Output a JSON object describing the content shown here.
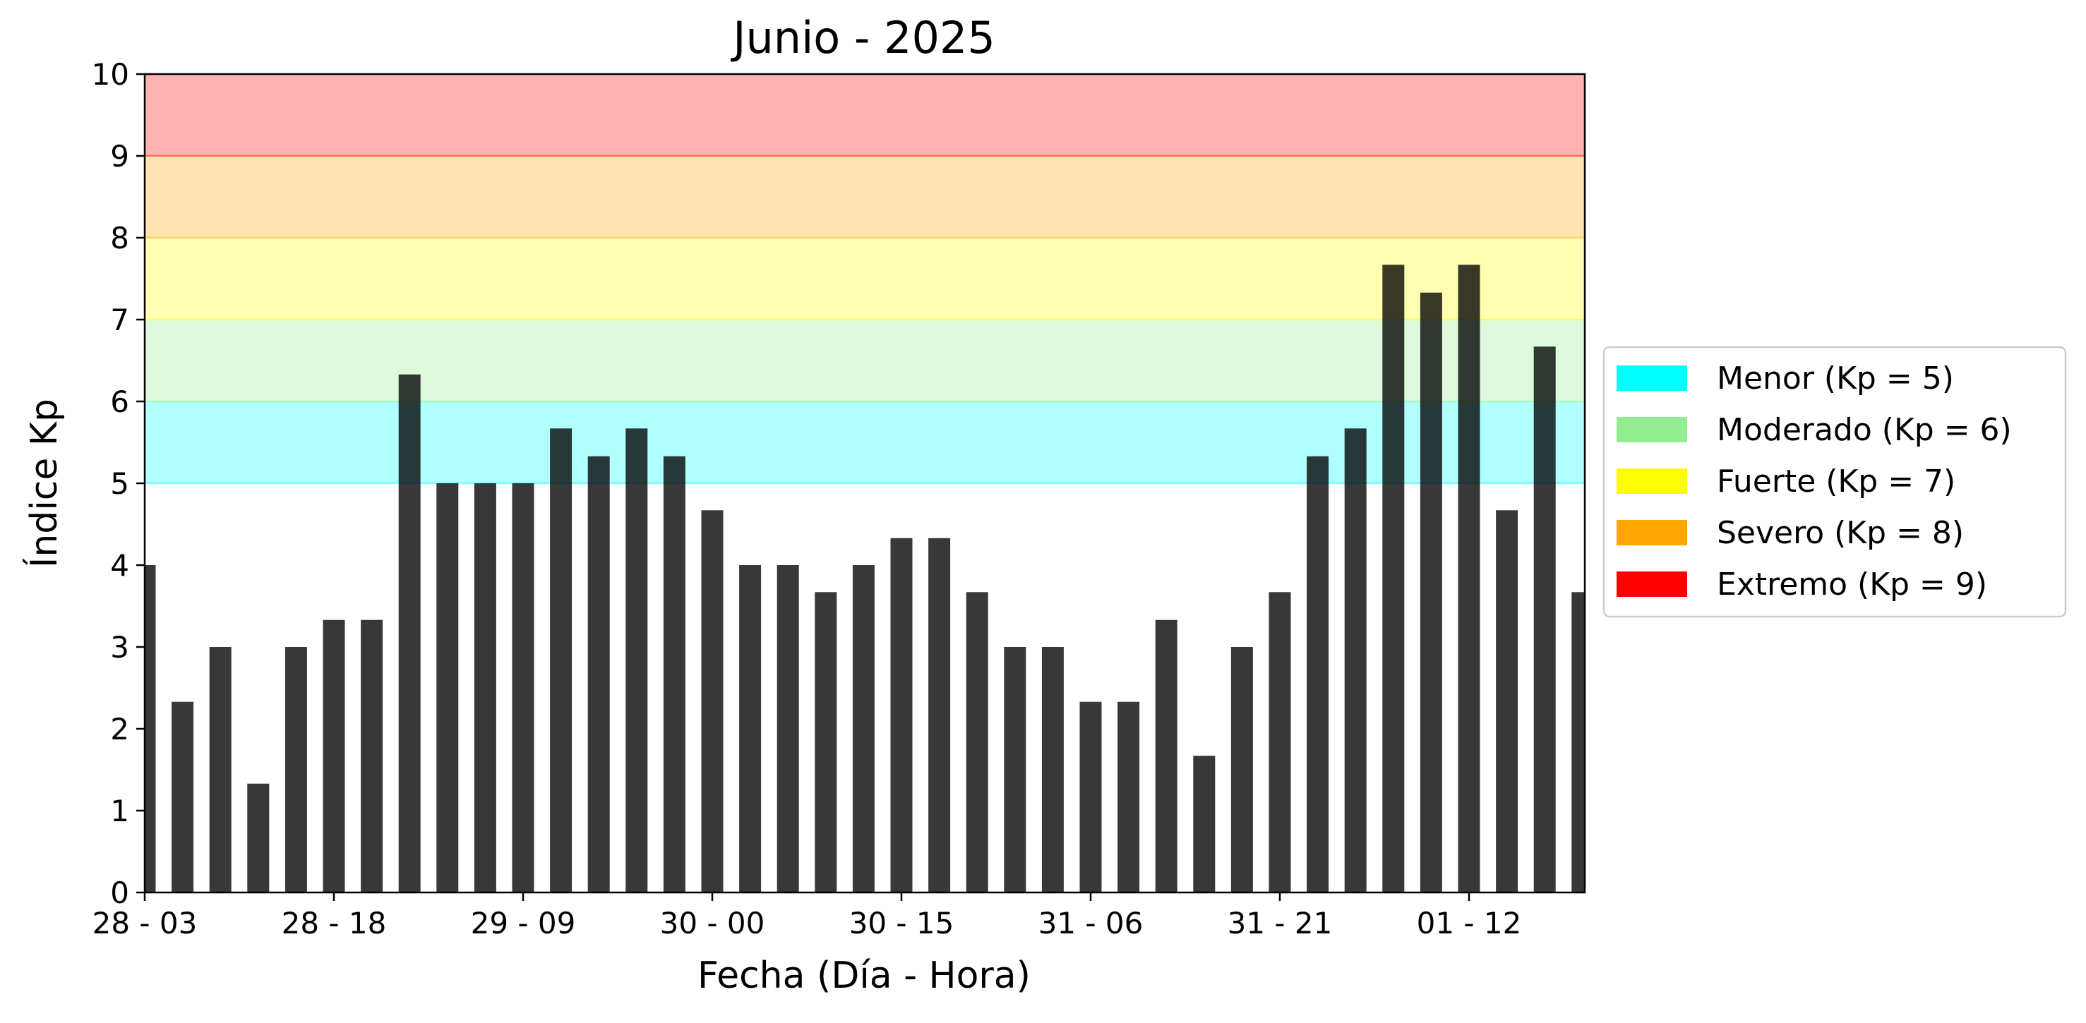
{
  "chart_data": {
    "type": "bar",
    "title": "Junio - 2025",
    "xlabel": "Fecha (Día - Hora)",
    "ylabel": "Índice Kp",
    "ylim": [
      0,
      10
    ],
    "yticks": [
      0,
      1,
      2,
      3,
      4,
      5,
      6,
      7,
      8,
      9,
      10
    ],
    "bar_color": "#000000",
    "xticks": [
      "28 - 03",
      "28 - 18",
      "29 - 09",
      "30 - 00",
      "30 - 15",
      "31 - 06",
      "31 - 21",
      "01 - 12"
    ],
    "xtick_every": 5,
    "values": [
      4.0,
      2.33,
      3.0,
      1.33,
      3.0,
      3.33,
      3.33,
      6.33,
      5.0,
      5.0,
      5.0,
      5.67,
      5.33,
      5.67,
      5.33,
      4.67,
      4.0,
      4.0,
      3.67,
      4.0,
      4.33,
      4.33,
      3.67,
      3.0,
      3.0,
      2.33,
      2.33,
      3.33,
      1.67,
      3.0,
      3.67,
      5.33,
      5.67,
      7.67,
      7.33,
      7.67,
      4.67,
      6.67,
      3.67
    ],
    "bands": [
      {
        "from": 5,
        "to": 6,
        "color": "#00ffff",
        "opacity": 0.3
      },
      {
        "from": 6,
        "to": 7,
        "color": "#90ee90",
        "opacity": 0.3
      },
      {
        "from": 7,
        "to": 8,
        "color": "#ffff00",
        "opacity": 0.3
      },
      {
        "from": 8,
        "to": 9,
        "color": "#ffa500",
        "opacity": 0.3
      },
      {
        "from": 9,
        "to": 10,
        "color": "#ff0000",
        "opacity": 0.3
      }
    ],
    "legend_position": "right",
    "legend": [
      {
        "label": "Menor (Kp = 5)",
        "color": "#00ffff"
      },
      {
        "label": "Moderado (Kp = 6)",
        "color": "#90ee90"
      },
      {
        "label": "Fuerte (Kp = 7)",
        "color": "#ffff00"
      },
      {
        "label": "Severo (Kp = 8)",
        "color": "#ffa500"
      },
      {
        "label": "Extremo (Kp = 9)",
        "color": "#ff0000"
      }
    ]
  }
}
